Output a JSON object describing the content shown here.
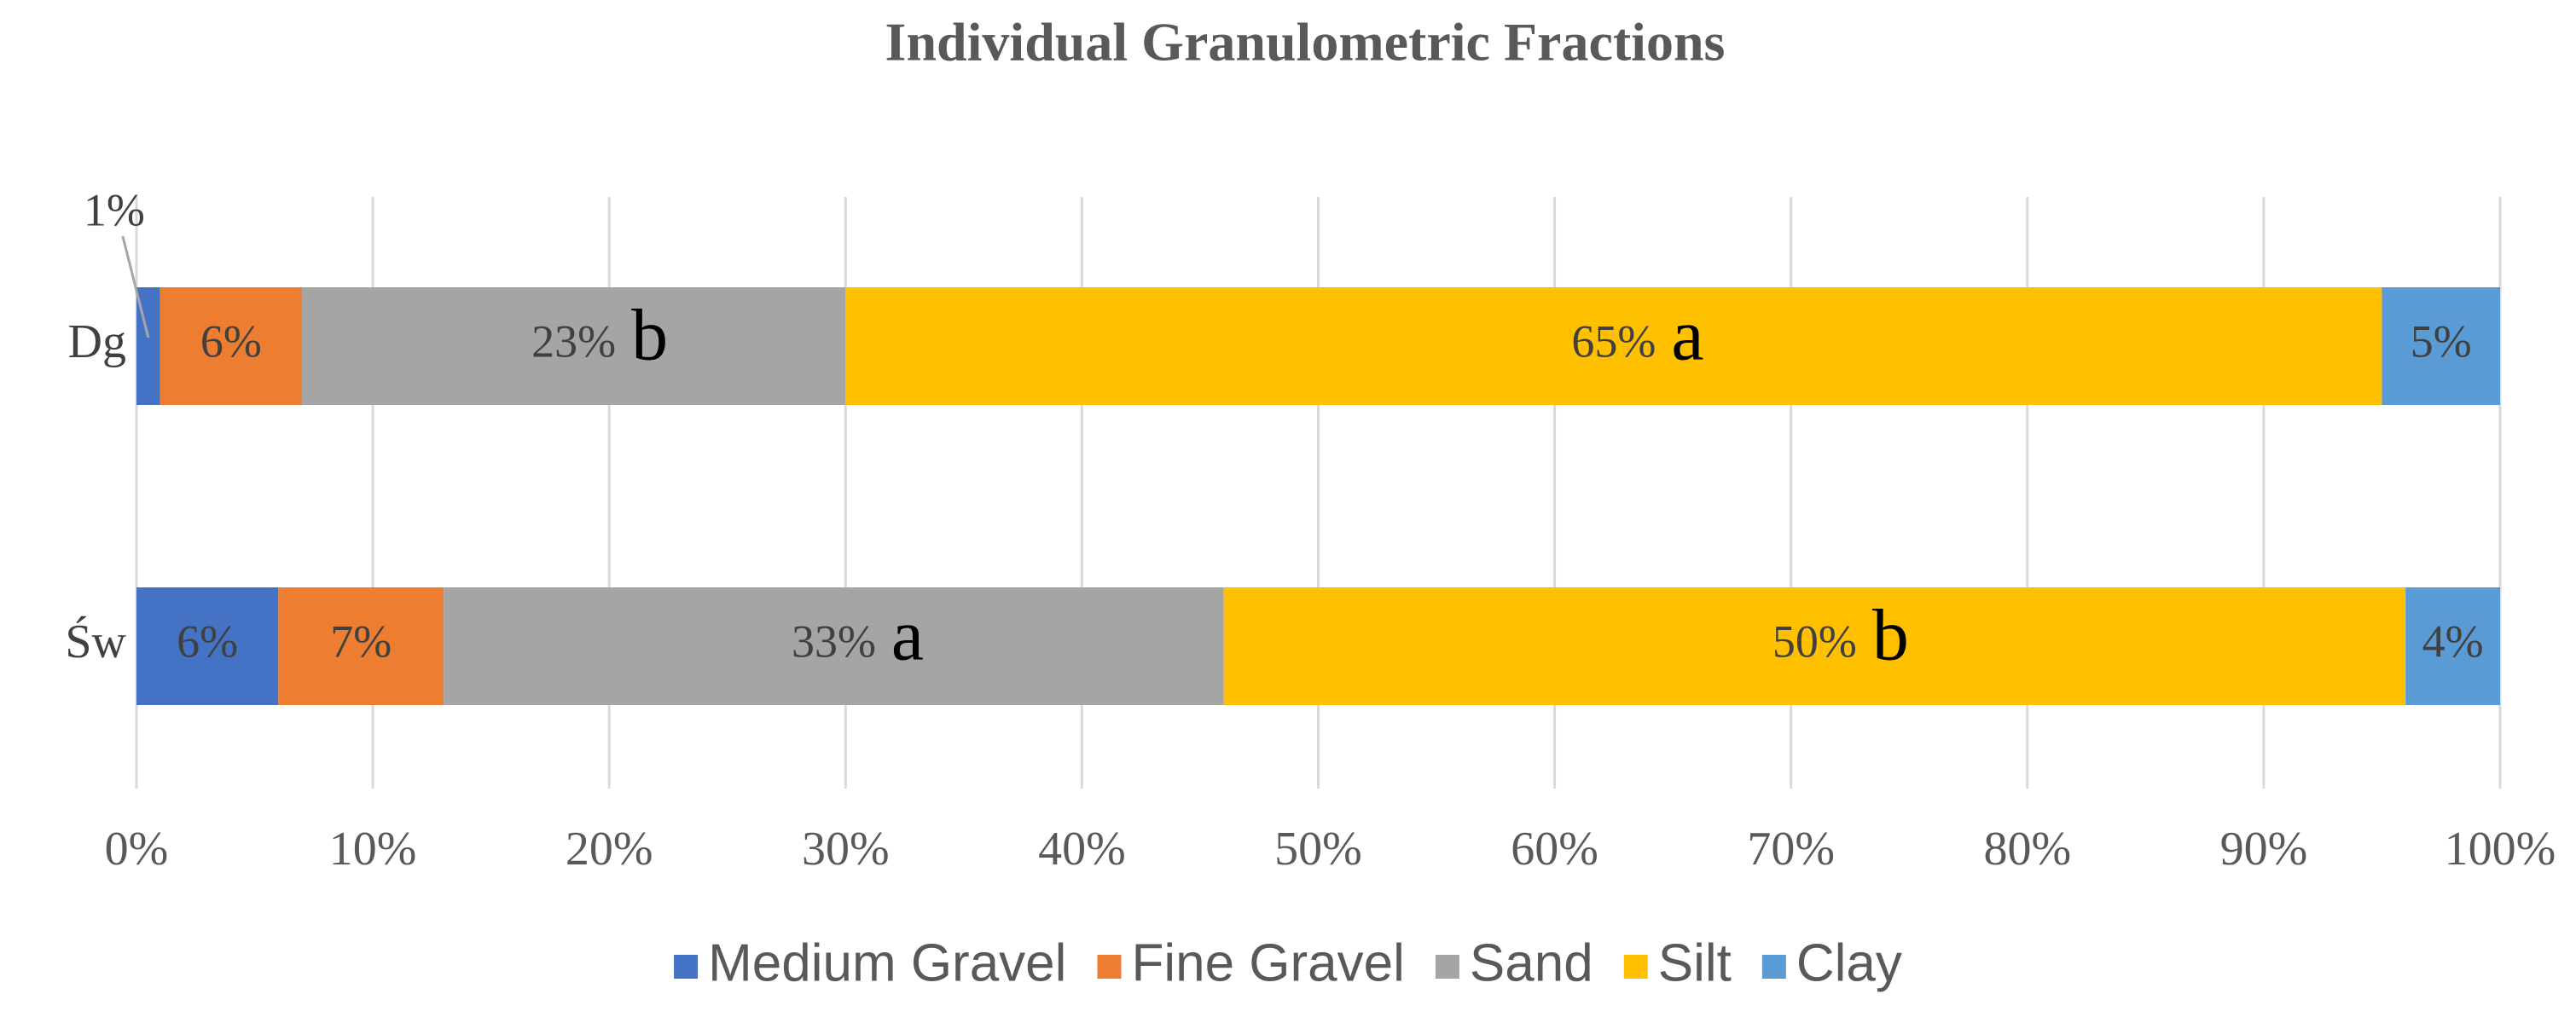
{
  "chart_data": {
    "type": "stacked-bar-100",
    "title": "Individual Granulometric Fractions",
    "categories": [
      "Dg",
      "Św"
    ],
    "series": [
      {
        "name": "Medium Gravel",
        "color": "#4472c4",
        "values": [
          1,
          6
        ],
        "value_labels": [
          "1%",
          "6%"
        ]
      },
      {
        "name": "Fine Gravel",
        "color": "#ed7d31",
        "values": [
          6,
          7
        ],
        "value_labels": [
          "6%",
          "7%"
        ]
      },
      {
        "name": "Sand",
        "color": "#a5a5a5",
        "values": [
          23,
          33
        ],
        "value_labels": [
          "23%",
          "33%"
        ],
        "significance": [
          "b",
          "a"
        ]
      },
      {
        "name": "Silt",
        "color": "#ffc000",
        "values": [
          65,
          50
        ],
        "value_labels": [
          "65%",
          "50%"
        ],
        "significance": [
          "a",
          "b"
        ]
      },
      {
        "name": "Clay",
        "color": "#5b9bd5",
        "values": [
          5,
          4
        ],
        "value_labels": [
          "5%",
          "4%"
        ]
      }
    ],
    "xlim": [
      0,
      100
    ],
    "xticks": [
      {
        "value": 0,
        "label": "0%"
      },
      {
        "value": 10,
        "label": "10%"
      },
      {
        "value": 20,
        "label": "20%"
      },
      {
        "value": 30,
        "label": "30%"
      },
      {
        "value": 40,
        "label": "40%"
      },
      {
        "value": 50,
        "label": "50%"
      },
      {
        "value": 60,
        "label": "60%"
      },
      {
        "value": 70,
        "label": "70%"
      },
      {
        "value": 80,
        "label": "80%"
      },
      {
        "value": 90,
        "label": "90%"
      },
      {
        "value": 100,
        "label": "100%"
      }
    ],
    "grid": true,
    "legend": "bottom"
  }
}
